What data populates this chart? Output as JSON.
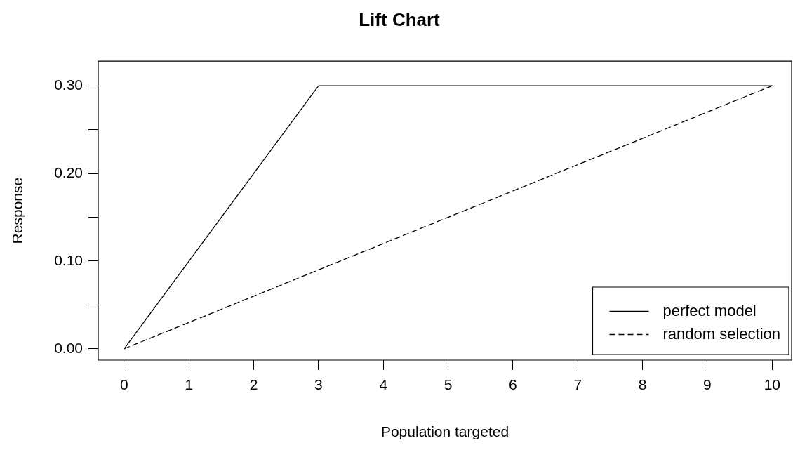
{
  "chart_data": {
    "type": "line",
    "title": "Lift Chart",
    "xlabel": "Population targeted",
    "ylabel": "Response",
    "series": [
      {
        "name": "perfect model",
        "color": "#000000",
        "line_style": "solid",
        "x": [
          0,
          3,
          10
        ],
        "values": [
          0,
          0.3,
          0.3
        ]
      },
      {
        "name": "random selection",
        "color": "#000000",
        "line_style": "dashed",
        "x": [
          0,
          10
        ],
        "values": [
          0,
          0.3
        ]
      }
    ],
    "xlim": [
      -0.4,
      10.3
    ],
    "xticks": [
      0,
      1,
      2,
      3,
      4,
      5,
      6,
      7,
      8,
      9,
      10
    ],
    "ylim": [
      -0.013,
      0.328
    ],
    "yticks": [
      {
        "value": 0,
        "label": "0.00"
      },
      {
        "value": 0.05,
        "label": null
      },
      {
        "value": 0.1,
        "label": "0.10"
      },
      {
        "value": 0.15,
        "label": null
      },
      {
        "value": 0.2,
        "label": "0.20"
      },
      {
        "value": 0.25,
        "label": null
      },
      {
        "value": 0.3,
        "label": "0.30"
      }
    ],
    "grid": false,
    "legend": "bottom right",
    "marker": "none"
  }
}
